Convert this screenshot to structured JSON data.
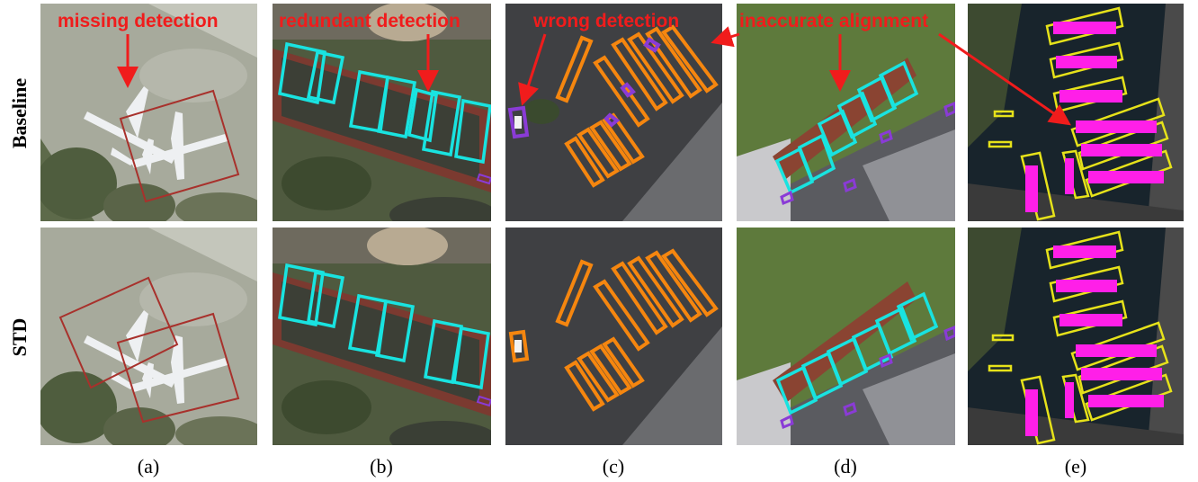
{
  "rows": [
    {
      "label": "Baseline"
    },
    {
      "label": "STD"
    }
  ],
  "columns": [
    {
      "caption": "(a)"
    },
    {
      "caption": "(b)"
    },
    {
      "caption": "(c)"
    },
    {
      "caption": "(d)"
    },
    {
      "caption": "(e)"
    }
  ],
  "annotations": {
    "missing": "missing detection",
    "redundant": "redundant detection",
    "wrong": "wrong detection",
    "inaccurate": "inaccurate alignment"
  },
  "colors": {
    "annotation_red": "#f01c1c",
    "box_dark_red": "#a8312c",
    "box_cyan": "#19e3e0",
    "box_orange": "#f5860f",
    "box_purple": "#8a3bd6",
    "box_yellow": "#e6e21a",
    "box_magenta": "#ff1fe8"
  }
}
